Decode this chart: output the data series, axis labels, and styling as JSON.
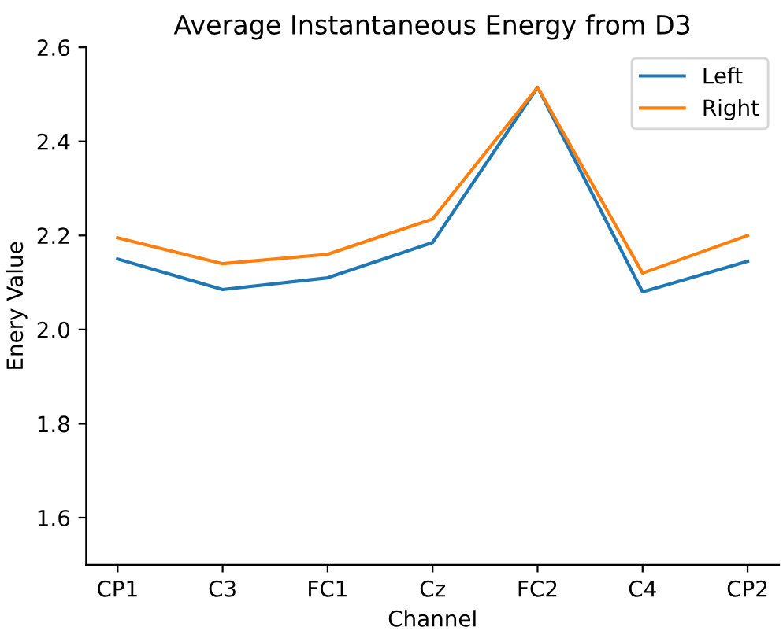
{
  "chart_data": {
    "type": "line",
    "title": "Average Instantaneous Energy from D3",
    "xlabel": "Channel",
    "ylabel": "Enery Value",
    "categories": [
      "CP1",
      "C3",
      "FC1",
      "Cz",
      "FC2",
      "C4",
      "CP2"
    ],
    "series": [
      {
        "name": "Left",
        "color": "#1f77b4",
        "values": [
          2.15,
          2.085,
          2.11,
          2.185,
          2.515,
          2.08,
          2.145
        ]
      },
      {
        "name": "Right",
        "color": "#ff7f0e",
        "values": [
          2.195,
          2.14,
          2.16,
          2.235,
          2.515,
          2.12,
          2.2
        ]
      }
    ],
    "ylim": [
      1.5,
      2.6
    ],
    "yticks": [
      1.6,
      1.8,
      {
        "value": 2.0,
        "label": "2.0"
      },
      2.2,
      2.4,
      2.6
    ],
    "grid": false,
    "legend": "top right"
  }
}
